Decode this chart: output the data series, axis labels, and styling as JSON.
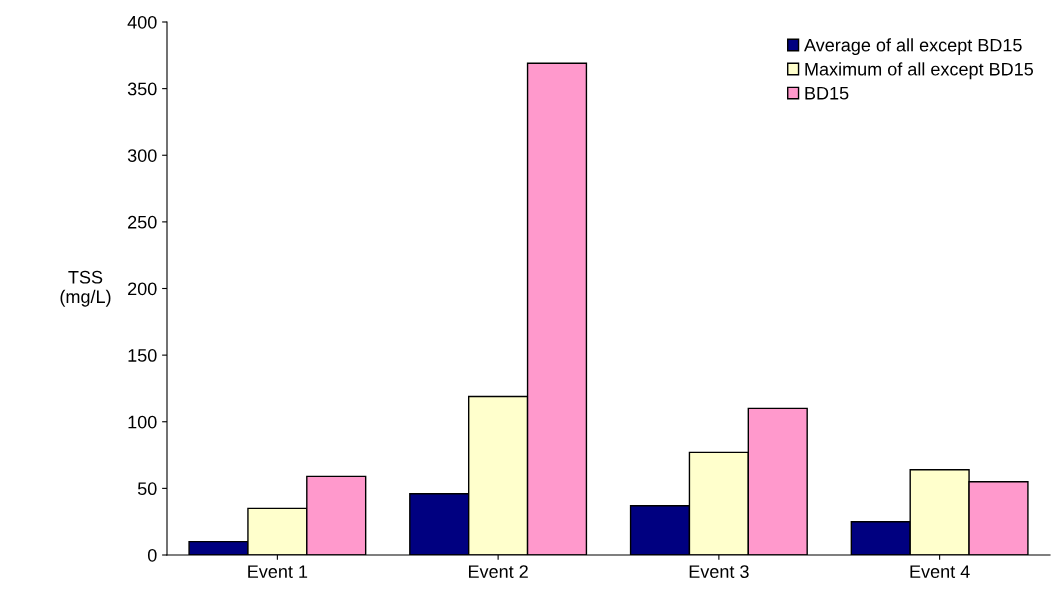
{
  "chart_data": {
    "type": "bar",
    "ylabel": "TSS\n(mg/L)",
    "categories": [
      "Event 1",
      "Event 2",
      "Event 3",
      "Event 4"
    ],
    "series": [
      {
        "name": "Average of all except BD15",
        "color": "#000080",
        "values": [
          10,
          46,
          37,
          25
        ]
      },
      {
        "name": "Maximum of all except BD15",
        "color": "#ffffcc",
        "values": [
          35,
          119,
          77,
          64
        ]
      },
      {
        "name": "BD15",
        "color": "#ff99cc",
        "values": [
          59,
          369,
          110,
          55
        ]
      }
    ],
    "ylim": [
      0,
      400
    ],
    "yticks": [
      0,
      50,
      100,
      150,
      200,
      250,
      300,
      350,
      400
    ],
    "grid": false,
    "legend": "top right"
  }
}
